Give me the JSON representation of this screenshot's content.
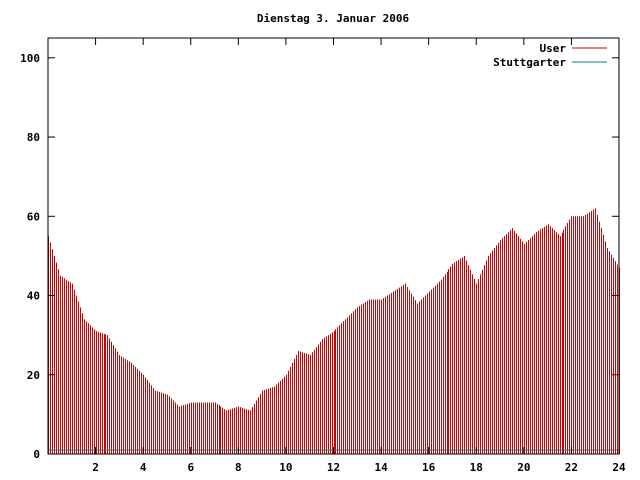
{
  "chart_data": {
    "type": "bar",
    "title": "Dienstag 3. Januar 2006",
    "xlabel": "",
    "ylabel": "",
    "xlim": [
      0,
      24
    ],
    "ylim": [
      0,
      105
    ],
    "x_ticks": [
      {
        "value": 2,
        "label": "2"
      },
      {
        "value": 4,
        "label": "4"
      },
      {
        "value": 6,
        "label": "6"
      },
      {
        "value": 8,
        "label": "8"
      },
      {
        "value": 10,
        "label": "10"
      },
      {
        "value": 12,
        "label": "12"
      },
      {
        "value": 14,
        "label": "14"
      },
      {
        "value": 16,
        "label": "16"
      },
      {
        "value": 18,
        "label": "18"
      },
      {
        "value": 20,
        "label": "20"
      },
      {
        "value": 22,
        "label": "22"
      },
      {
        "value": 24,
        "label": "24"
      }
    ],
    "y_ticks": [
      {
        "value": 0,
        "label": "0"
      },
      {
        "value": 20,
        "label": "20"
      },
      {
        "value": 40,
        "label": "40"
      },
      {
        "value": 60,
        "label": "60"
      },
      {
        "value": 80,
        "label": "80"
      },
      {
        "value": 100,
        "label": "100"
      }
    ],
    "grid": false,
    "legend_position": "top-right",
    "series": [
      {
        "name": "User",
        "color": "#cc0000",
        "style": "impulses",
        "points": [
          [
            0.0,
            55
          ],
          [
            0.5,
            45
          ],
          [
            1.0,
            43
          ],
          [
            1.5,
            34
          ],
          [
            2.0,
            31
          ],
          [
            2.5,
            30
          ],
          [
            3.0,
            25
          ],
          [
            3.5,
            23
          ],
          [
            4.0,
            20
          ],
          [
            4.5,
            16
          ],
          [
            5.0,
            15
          ],
          [
            5.5,
            12
          ],
          [
            6.0,
            13
          ],
          [
            6.5,
            13
          ],
          [
            7.0,
            13
          ],
          [
            7.5,
            11
          ],
          [
            8.0,
            12
          ],
          [
            8.5,
            11
          ],
          [
            9.0,
            16
          ],
          [
            9.5,
            17
          ],
          [
            10.0,
            20
          ],
          [
            10.5,
            26
          ],
          [
            11.0,
            25
          ],
          [
            11.5,
            29
          ],
          [
            12.0,
            31
          ],
          [
            12.5,
            34
          ],
          [
            13.0,
            37
          ],
          [
            13.5,
            39
          ],
          [
            14.0,
            39
          ],
          [
            14.5,
            41
          ],
          [
            15.0,
            43
          ],
          [
            15.5,
            38
          ],
          [
            16.0,
            41
          ],
          [
            16.5,
            44
          ],
          [
            17.0,
            48
          ],
          [
            17.5,
            50
          ],
          [
            18.0,
            43
          ],
          [
            18.5,
            50
          ],
          [
            19.0,
            54
          ],
          [
            19.5,
            57
          ],
          [
            20.0,
            53
          ],
          [
            20.5,
            56
          ],
          [
            21.0,
            58
          ],
          [
            21.5,
            55
          ],
          [
            22.0,
            60
          ],
          [
            22.5,
            60
          ],
          [
            23.0,
            62
          ],
          [
            23.5,
            52
          ],
          [
            24.0,
            47
          ]
        ]
      },
      {
        "name": "Stuttgarter",
        "color": "#008080",
        "style": "line",
        "points": [
          [
            0.0,
            1
          ],
          [
            3.0,
            1
          ],
          [
            22.2,
            1
          ],
          [
            24.0,
            1
          ]
        ]
      }
    ]
  }
}
